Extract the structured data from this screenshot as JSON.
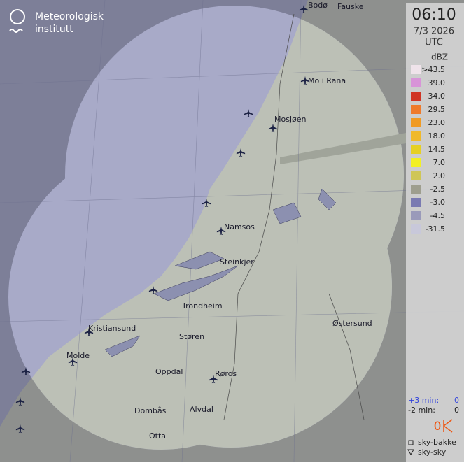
{
  "header": {
    "org_line1": "Meteorologisk",
    "org_line2": "institutt"
  },
  "panel": {
    "time": "06:10",
    "date": "7/3 2026",
    "timezone": "UTC",
    "unit": "dBZ",
    "legend": [
      {
        "label": ">43.5",
        "color": "#efe3ea"
      },
      {
        "label": "39.0",
        "color": "#d894d8"
      },
      {
        "label": "34.0",
        "color": "#d03424"
      },
      {
        "label": "29.5",
        "color": "#ef7a2a"
      },
      {
        "label": "23.0",
        "color": "#f09a22"
      },
      {
        "label": "18.0",
        "color": "#f0b92a"
      },
      {
        "label": "14.5",
        "color": "#e6d024"
      },
      {
        "label": "7.0",
        "color": "#f2f024"
      },
      {
        "label": "2.0",
        "color": "#cfc656"
      },
      {
        "label": "-2.5",
        "color": "#9e9e8e"
      },
      {
        "label": "-3.0",
        "color": "#7a7ab2"
      },
      {
        "label": "-4.5",
        "color": "#9a9aba"
      },
      {
        "label": "-31.5",
        "color": "#c8c8da"
      }
    ],
    "lightning": {
      "forecast_label": "+3 min:",
      "forecast_count": "0",
      "past_label": "-2 min:",
      "past_count": "0",
      "count": "0",
      "ground_label": "sky-bakke",
      "cloud_label": "sky-sky"
    }
  },
  "places": [
    "Bodø",
    "Fauske",
    "Mo i Rana",
    "Mosjøen",
    "Namsos",
    "Steinkjer",
    "Trondheim",
    "Kristiansund",
    "Molde",
    "Støren",
    "Østersund",
    "Oppdal",
    "Røros",
    "Dombås",
    "Alvdal",
    "Otta"
  ]
}
